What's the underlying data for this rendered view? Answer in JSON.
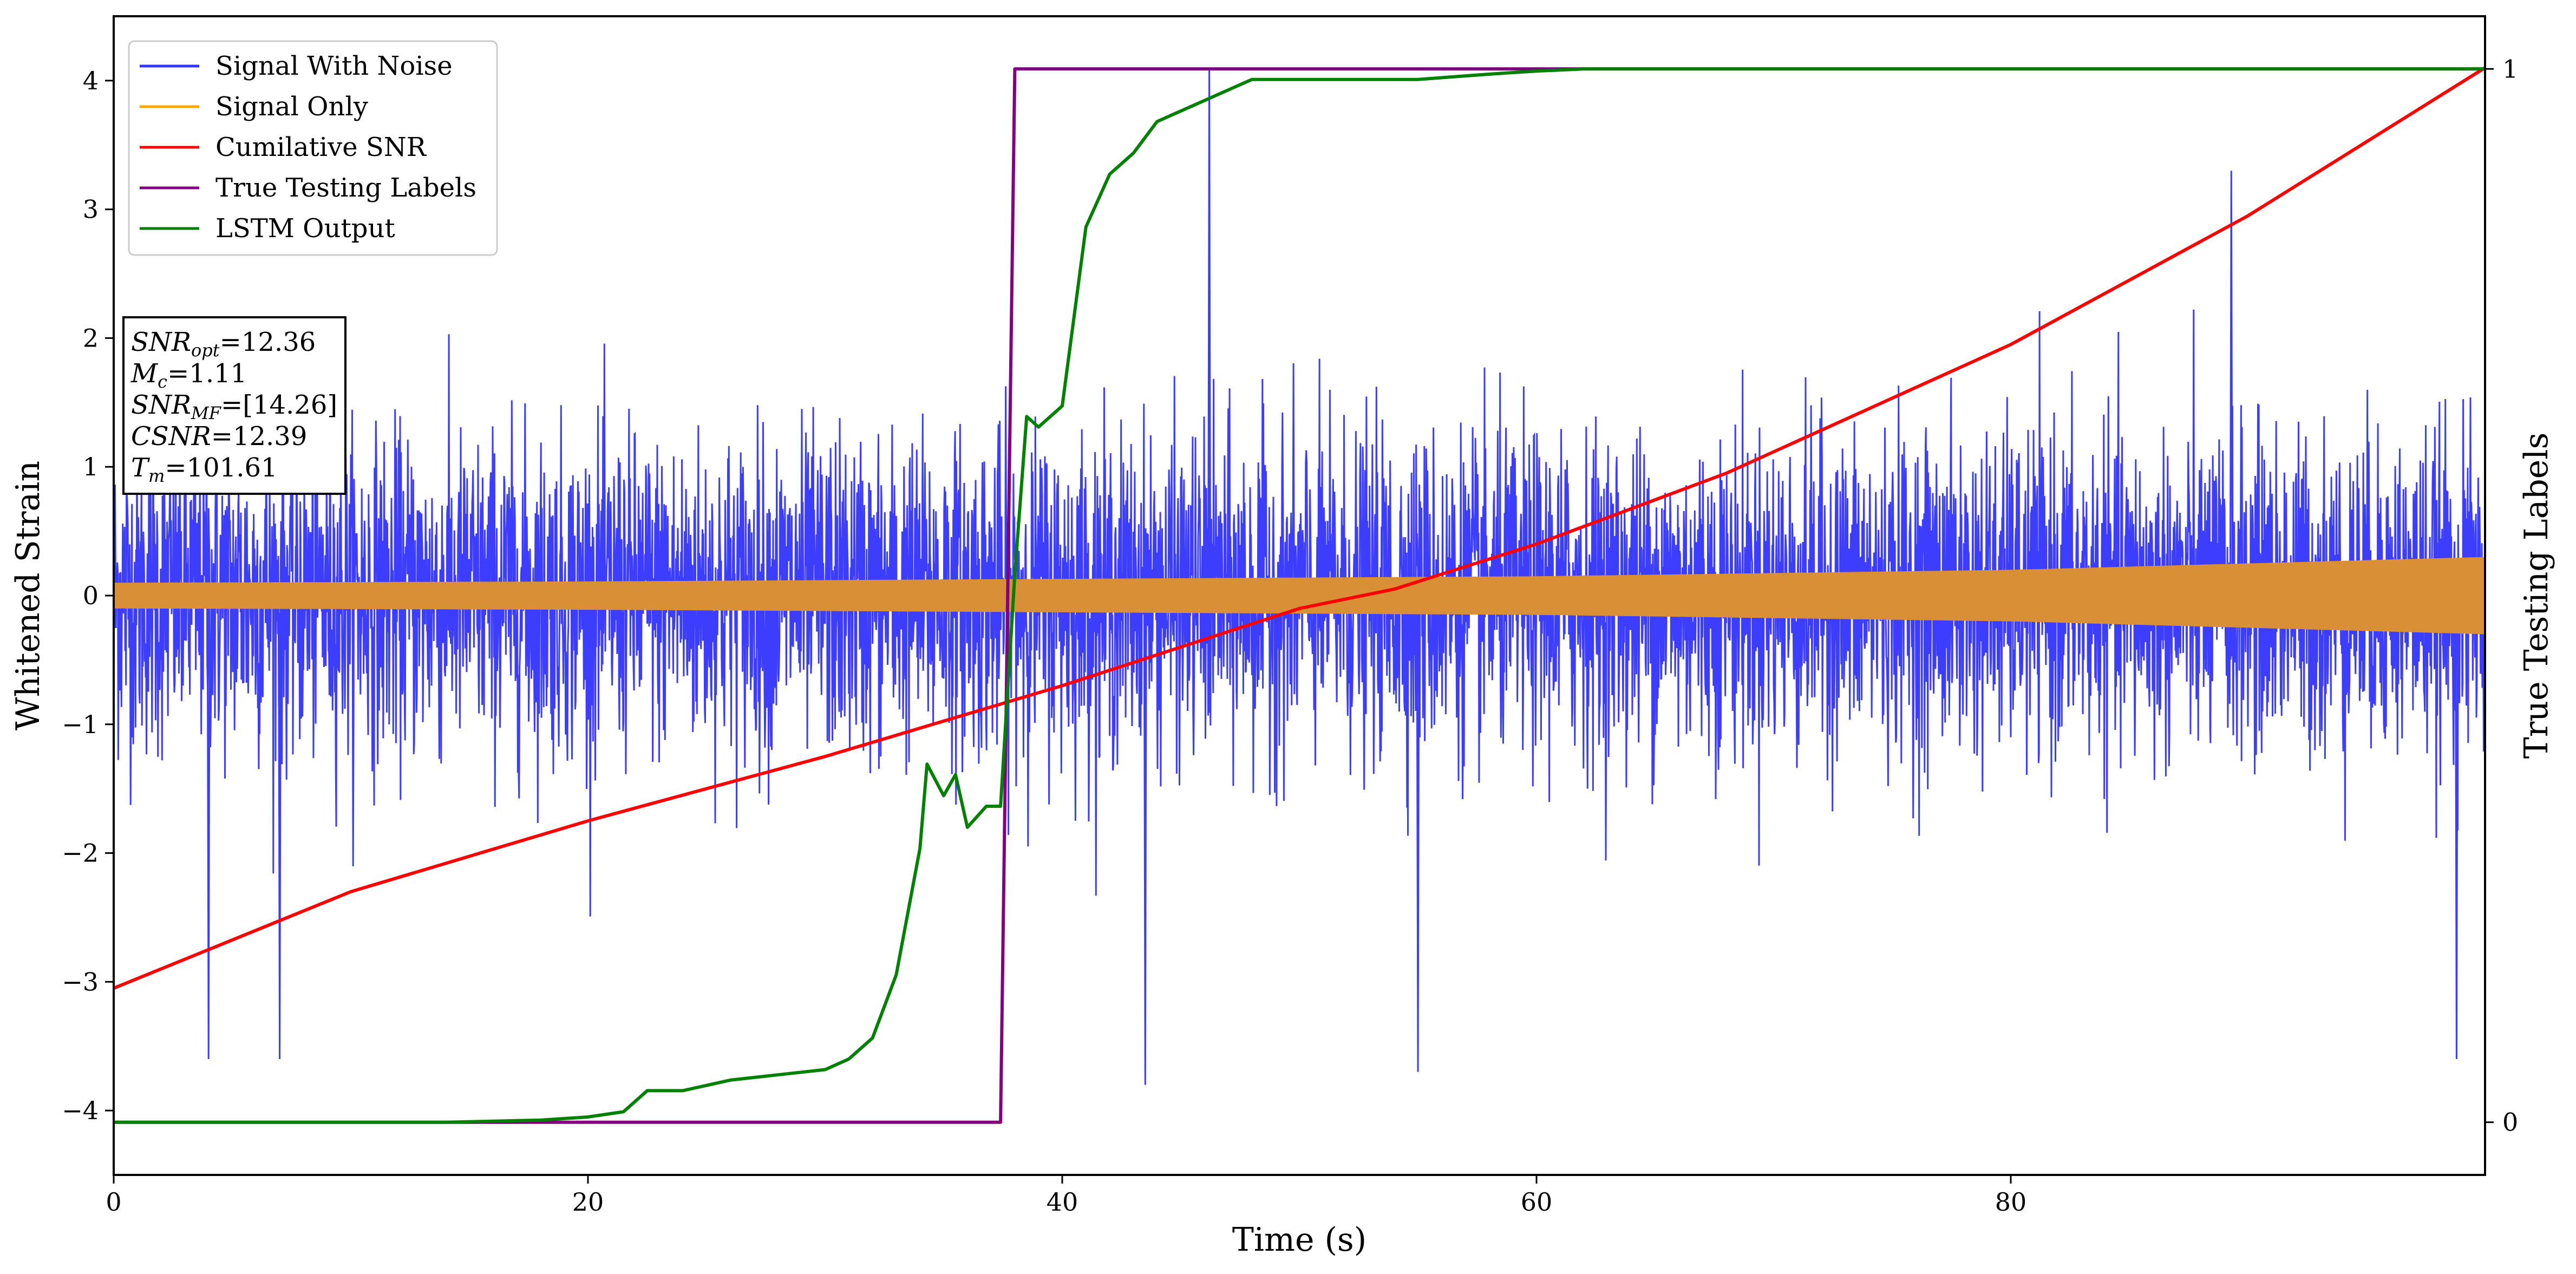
{
  "chart_data": {
    "type": "line",
    "xlabel": "Time (s)",
    "ylabel": "Whitened Strain",
    "y2label": "True Testing Labels",
    "xlim": [
      0,
      100
    ],
    "ylim": [
      -4.5,
      4.5
    ],
    "y2lim": [
      -0.05,
      1.05
    ],
    "xticks": [
      0,
      20,
      40,
      60,
      80
    ],
    "yticks": [
      -4,
      -3,
      -2,
      -1,
      0,
      1,
      2,
      3,
      4
    ],
    "y2ticks": [
      0,
      1
    ],
    "grid": false,
    "legend": {
      "position": "top-left",
      "entries": [
        "Signal With Noise",
        "Signal Only",
        "Cumilative SNR",
        "True Testing Labels",
        "LSTM Output"
      ]
    },
    "annotation": {
      "lines": [
        {
          "var": "SNR",
          "sub": "opt",
          "value": "=12.36"
        },
        {
          "var": "M",
          "sub": "c",
          "value": "=1.11"
        },
        {
          "var": "SNR",
          "sub": "MF",
          "value": "=[14.26]"
        },
        {
          "var": "CSNR",
          "sub": "",
          "value": "=12.39"
        },
        {
          "var": "T",
          "sub": "m",
          "value": "=101.61"
        }
      ]
    },
    "series": [
      {
        "name": "Signal With Noise",
        "axis": "left",
        "color": "#3333ff",
        "style": "noise",
        "amplitude_envelope": {
          "typical_max": 1.6,
          "peak_max": 4.1,
          "peak_min": -3.8
        },
        "notable_peaks": [
          [
            46.2,
            4.1
          ],
          [
            43.5,
            -3.8
          ],
          [
            55.0,
            -3.7
          ],
          [
            98.8,
            -3.6
          ],
          [
            4.0,
            -3.6
          ],
          [
            7.0,
            -3.6
          ],
          [
            89.3,
            3.3
          ]
        ]
      },
      {
        "name": "Signal Only",
        "axis": "left",
        "color": "#ffa500",
        "style": "band",
        "envelope": {
          "x": [
            0,
            20,
            40,
            60,
            80,
            100
          ],
          "amp": [
            0.1,
            0.11,
            0.13,
            0.15,
            0.2,
            0.3
          ]
        }
      },
      {
        "name": "Cumilative SNR",
        "axis": "left",
        "color": "#ff0000",
        "x": [
          0,
          10,
          20,
          30,
          40,
          50,
          54,
          60,
          68,
          80,
          90,
          100
        ],
        "y": [
          -3.05,
          -2.3,
          -1.75,
          -1.25,
          -0.7,
          -0.1,
          0.05,
          0.4,
          0.95,
          1.95,
          2.95,
          4.1
        ]
      },
      {
        "name": "True Testing Labels",
        "axis": "right",
        "color": "#800080",
        "x": [
          0,
          37.4,
          38.0,
          100
        ],
        "y": [
          0,
          0,
          1,
          1
        ]
      },
      {
        "name": "LSTM Output",
        "axis": "right",
        "color": "#008000",
        "x": [
          0,
          14,
          18,
          20,
          21.5,
          22.5,
          24,
          26,
          28,
          30,
          31,
          32,
          33,
          34,
          34.3,
          35,
          35.5,
          36,
          36.8,
          37.4,
          38,
          38.5,
          39,
          40,
          41,
          42,
          43,
          44,
          46,
          48,
          50,
          52,
          55,
          58,
          60,
          62,
          65,
          100
        ],
        "y": [
          0,
          0,
          0.002,
          0.005,
          0.01,
          0.03,
          0.03,
          0.04,
          0.045,
          0.05,
          0.06,
          0.08,
          0.14,
          0.26,
          0.34,
          0.31,
          0.33,
          0.28,
          0.3,
          0.3,
          0.52,
          0.67,
          0.66,
          0.68,
          0.85,
          0.9,
          0.92,
          0.95,
          0.97,
          0.99,
          0.99,
          0.99,
          0.99,
          0.995,
          0.998,
          1,
          1,
          1
        ]
      }
    ]
  }
}
